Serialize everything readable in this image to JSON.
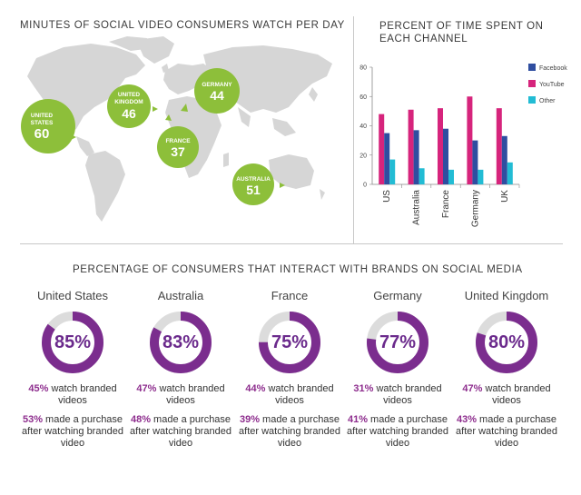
{
  "colors": {
    "green": "#8dbf3a",
    "map_land": "#d6d6d6",
    "facebook": "#2f4ea0",
    "youtube": "#d6247c",
    "other": "#22bcd4",
    "donut": "#7b2d8e",
    "donut_rest": "#dcdcdc"
  },
  "map": {
    "title": "MINUTES OF SOCIAL VIDEO CONSUMERS WATCH PER DAY",
    "bubbles": [
      {
        "name": "UNITED STATES",
        "line1": "UNITED",
        "line2": "STATES",
        "value": "60"
      },
      {
        "name": "UNITED KINGDOM",
        "line1": "UNITED",
        "line2": "KINGDOM",
        "value": "46"
      },
      {
        "name": "GERMANY",
        "line1": "GERMANY",
        "line2": "",
        "value": "44"
      },
      {
        "name": "FRANCE",
        "line1": "FRANCE",
        "line2": "",
        "value": "37"
      },
      {
        "name": "AUSTRALIA",
        "line1": "AUSTRALIA",
        "line2": "",
        "value": "51"
      }
    ]
  },
  "chart_data": [
    {
      "type": "bar",
      "title": "PERCENT OF TIME SPENT ON EACH CHANNEL",
      "categories": [
        "US",
        "Australia",
        "France",
        "Germany",
        "UK"
      ],
      "series": [
        {
          "name": "Facebook",
          "values": [
            35,
            37,
            38,
            30,
            33
          ]
        },
        {
          "name": "YouTube",
          "values": [
            48,
            51,
            52,
            60,
            52
          ]
        },
        {
          "name": "Other",
          "values": [
            17,
            11,
            10,
            10,
            15
          ]
        }
      ],
      "ylim": [
        0,
        80
      ],
      "yticks": [
        0,
        20,
        40,
        60,
        80
      ],
      "legend": "right"
    },
    {
      "type": "pie",
      "title": "PERCENTAGE OF CONSUMERS THAT INTERACT WITH BRANDS ON SOCIAL MEDIA",
      "categories": [
        "United States",
        "Australia",
        "France",
        "Germany",
        "United Kingdom"
      ],
      "values": [
        85,
        83,
        75,
        77,
        80
      ],
      "value_labels": [
        "85%",
        "83%",
        "75%",
        "77%",
        "80%"
      ]
    }
  ],
  "donuts": [
    {
      "country": "United States",
      "pct_label": "85%",
      "value": 85,
      "watch_pct": "45%",
      "watch_text": "watch branded videos",
      "buy_pct": "53%",
      "buy_text": "made a purchase after watching branded video"
    },
    {
      "country": "Australia",
      "pct_label": "83%",
      "value": 83,
      "watch_pct": "47%",
      "watch_text": "watch branded videos",
      "buy_pct": "48%",
      "buy_text": "made a purchase after watching branded video"
    },
    {
      "country": "France",
      "pct_label": "75%",
      "value": 75,
      "watch_pct": "44%",
      "watch_text": "watch branded videos",
      "buy_pct": "39%",
      "buy_text": "made a purchase after watching branded video"
    },
    {
      "country": "Germany",
      "pct_label": "77%",
      "value": 77,
      "watch_pct": "31%",
      "watch_text": "watch branded videos",
      "buy_pct": "41%",
      "buy_text": "made a purchase after watching branded video"
    },
    {
      "country": "United Kingdom",
      "pct_label": "80%",
      "value": 80,
      "watch_pct": "47%",
      "watch_text": "watch branded videos",
      "buy_pct": "43%",
      "buy_text": "made a purchase after watching branded video"
    }
  ]
}
